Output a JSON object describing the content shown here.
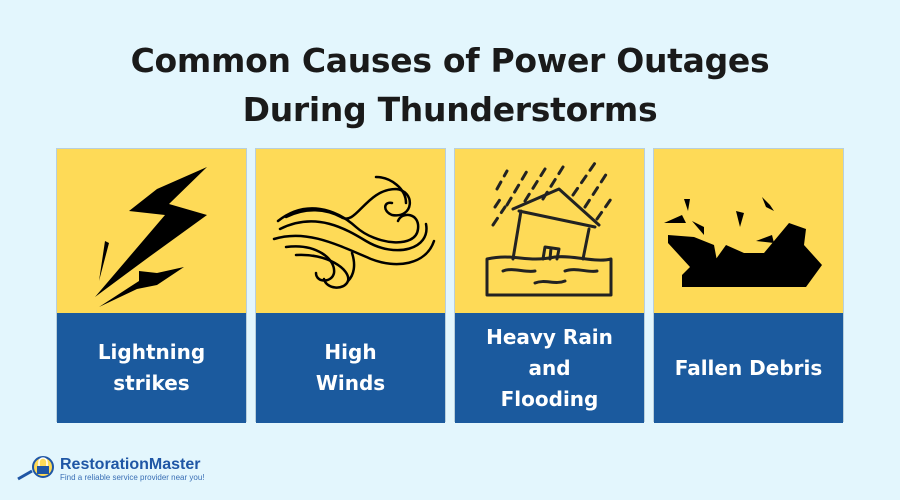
{
  "title_line1": "Common Causes of Power Outages",
  "title_line2": "During Thunderstorms",
  "cards": [
    {
      "label": "Lightning strikes",
      "icon": "lightning-icon"
    },
    {
      "label": "High Winds",
      "icon": "wind-icon"
    },
    {
      "label": "Heavy Rain and Flooding",
      "icon": "flooded-house-icon"
    },
    {
      "label": "Fallen Debris",
      "icon": "debris-icon"
    }
  ],
  "logo": {
    "name": "RestorationMaster",
    "tagline": "Find a reliable service provider near you!"
  },
  "colors": {
    "background": "#E3F6FD",
    "card_top": "#FEDA57",
    "card_bottom": "#1B5A9E"
  }
}
